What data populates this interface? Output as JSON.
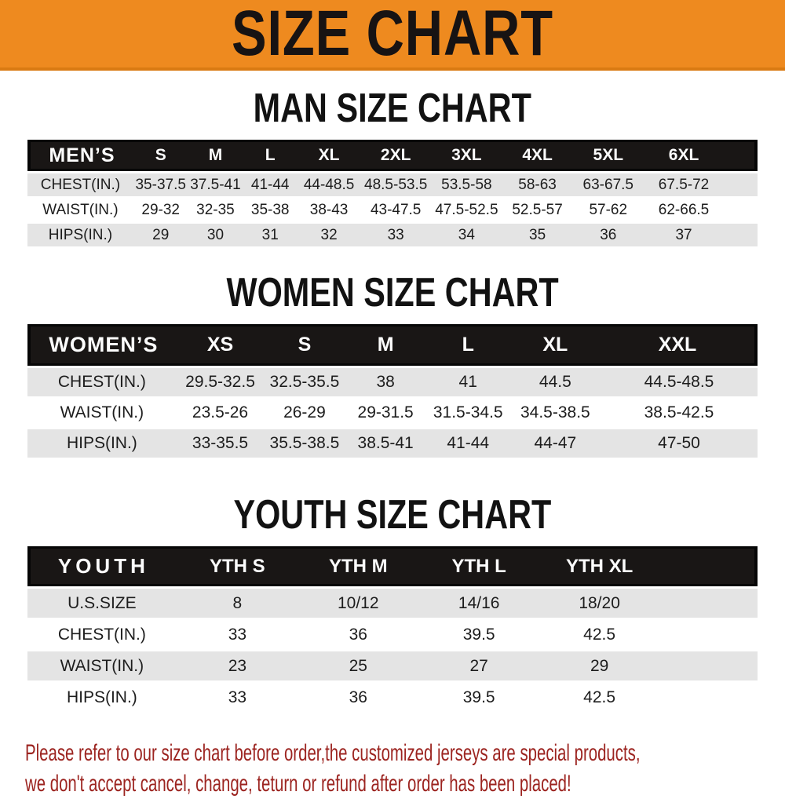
{
  "banner": {
    "title": "SIZE CHART",
    "bg_color": "#ee8a1f",
    "text_color": "#171313"
  },
  "sections": [
    {
      "id": "men",
      "title": "MAN SIZE CHART",
      "header_label": "MEN’S",
      "columns": [
        "S",
        "M",
        "L",
        "XL",
        "2XL",
        "3XL",
        "4XL",
        "5XL",
        "6XL"
      ],
      "rows": [
        {
          "label": "CHEST(IN.)",
          "values": [
            "35-37.5",
            "37.5-41",
            "41-44",
            "44-48.5",
            "48.5-53.5",
            "53.5-58",
            "58-63",
            "63-67.5",
            "67.5-72"
          ]
        },
        {
          "label": "WAIST(IN.)",
          "values": [
            "29-32",
            "32-35",
            "35-38",
            "38-43",
            "43-47.5",
            "47.5-52.5",
            "52.5-57",
            "57-62",
            "62-66.5"
          ]
        },
        {
          "label": "HIPS(IN.)",
          "values": [
            "29",
            "30",
            "31",
            "32",
            "33",
            "34",
            "35",
            "36",
            "37"
          ]
        }
      ]
    },
    {
      "id": "women",
      "title": "WOMEN SIZE CHART",
      "header_label": "WOMEN’S",
      "columns": [
        "XS",
        "S",
        "M",
        "L",
        "XL",
        "XXL"
      ],
      "rows": [
        {
          "label": "CHEST(IN.)",
          "values": [
            "29.5-32.5",
            "32.5-35.5",
            "38",
            "41",
            "44.5",
            "44.5-48.5"
          ]
        },
        {
          "label": "WAIST(IN.)",
          "values": [
            "23.5-26",
            "26-29",
            "29-31.5",
            "31.5-34.5",
            "34.5-38.5",
            "38.5-42.5"
          ]
        },
        {
          "label": "HIPS(IN.)",
          "values": [
            "33-35.5",
            "35.5-38.5",
            "38.5-41",
            "41-44",
            "44-47",
            "47-50"
          ]
        }
      ]
    },
    {
      "id": "youth",
      "title": "YOUTH SIZE CHART",
      "header_label": "YOUTH",
      "columns": [
        "YTH S",
        "YTH M",
        "YTH L",
        "YTH XL"
      ],
      "rows": [
        {
          "label": "U.S.SIZE",
          "values": [
            "8",
            "10/12",
            "14/16",
            "18/20"
          ]
        },
        {
          "label": "CHEST(IN.)",
          "values": [
            "33",
            "36",
            "39.5",
            "42.5"
          ]
        },
        {
          "label": "WAIST(IN.)",
          "values": [
            "23",
            "25",
            "27",
            "29"
          ]
        },
        {
          "label": "HIPS(IN.)",
          "values": [
            "33",
            "36",
            "39.5",
            "42.5"
          ]
        }
      ]
    }
  ],
  "footer": {
    "line1": "Please refer to our size chart before order,the customized jerseys are special products,",
    "line2": "we don't accept cancel, change, teturn or refund after order has been placed!",
    "text_color": "#9c2420"
  }
}
